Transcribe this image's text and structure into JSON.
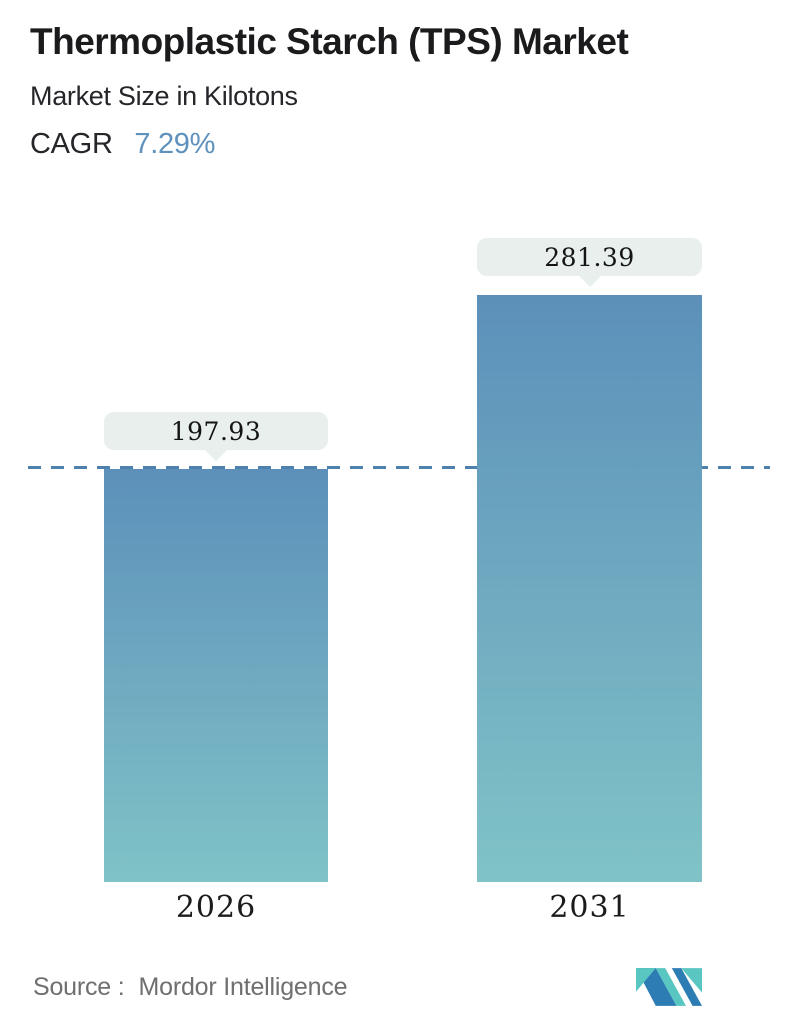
{
  "header": {
    "title": "Thermoplastic Starch (TPS) Market",
    "subtitle": "Market Size in Kilotons",
    "cagr_label": "CAGR",
    "cagr_value": "7.29%"
  },
  "chart_data": {
    "type": "bar",
    "title": "Thermoplastic Starch (TPS) Market",
    "subtitle": "Market Size in Kilotons",
    "unit": "Kilotons",
    "categories": [
      "2026",
      "2031"
    ],
    "values": [
      197.93,
      281.39
    ],
    "value_labels": [
      "197.93",
      "281.39"
    ],
    "cagr_percent": 7.29,
    "ylim": [
      0,
      281.39
    ],
    "grid": false,
    "legend": "none",
    "reference_line": {
      "value": 197.93,
      "style": "dashed",
      "color": "#4e81ad"
    },
    "bar_gradient_top": "#5c90ba",
    "bar_gradient_bottom": "#80c3c7",
    "label_bubble_bg": "#e8efed"
  },
  "footer": {
    "source_label": "Source :",
    "source_value": "Mordor Intelligence",
    "logo_name": "mordor-intelligence-logo",
    "logo_teal": "#59c6c1",
    "logo_blue": "#2d7cb4"
  },
  "colors": {
    "title_text": "#1b1b1d",
    "body_text": "#26262a",
    "cagr_accent": "#5e92bd",
    "source_text": "#6f6f6f",
    "background": "#ffffff"
  }
}
